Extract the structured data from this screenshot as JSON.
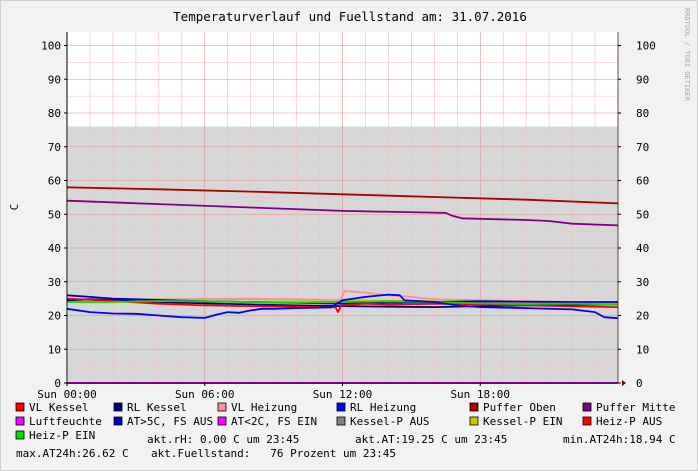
{
  "chart_data": {
    "type": "line",
    "title": "Temperaturverlauf und Fuellstand am: 31.07.2016",
    "ylabel": "C",
    "watermark": "RRDTOOL / TOBI OETIKER",
    "ylim": [
      0,
      104
    ],
    "y_ticks": [
      0,
      10,
      20,
      30,
      40,
      50,
      60,
      70,
      80,
      90,
      100
    ],
    "x_range_hours": [
      0,
      24
    ],
    "x_ticks": [
      {
        "hour": 0,
        "label": "Sun 00:00"
      },
      {
        "hour": 6,
        "label": "Sun 06:00"
      },
      {
        "hour": 12,
        "label": "Sun 12:00"
      },
      {
        "hour": 18,
        "label": "Sun 18:00"
      }
    ],
    "grid": true,
    "area": {
      "name": "Fuellstand",
      "value": 76,
      "color": "#d7d7d7"
    },
    "series": [
      {
        "name": "VL Kessel",
        "color": "#ff0000",
        "points": [
          [
            0,
            25
          ],
          [
            2,
            24.3
          ],
          [
            4,
            23.5
          ],
          [
            6,
            23
          ],
          [
            8,
            22.8
          ],
          [
            10,
            22.6
          ],
          [
            11.7,
            22.4
          ],
          [
            11.8,
            21
          ],
          [
            11.95,
            23
          ],
          [
            13,
            23.5
          ],
          [
            14,
            23.2
          ],
          [
            16,
            23.5
          ],
          [
            18,
            23.3
          ],
          [
            20,
            23
          ],
          [
            22,
            22.7
          ],
          [
            24,
            22.5
          ]
        ]
      },
      {
        "name": "RL Kessel",
        "color": "#000080",
        "points": [
          [
            0,
            24.5
          ],
          [
            1,
            24.8
          ],
          [
            2,
            24.5
          ],
          [
            4,
            24
          ],
          [
            6,
            23.6
          ],
          [
            8,
            23.3
          ],
          [
            10,
            23
          ],
          [
            12,
            22.8
          ],
          [
            14,
            22.6
          ],
          [
            16,
            22.5
          ],
          [
            18,
            22.8
          ],
          [
            20,
            23
          ],
          [
            22,
            23.2
          ],
          [
            24,
            23.3
          ]
        ]
      },
      {
        "name": "VL Heizung",
        "color": "#ff8ca0",
        "points": [
          [
            0,
            24.8
          ],
          [
            4,
            24.8
          ],
          [
            8,
            25
          ],
          [
            10,
            24.8
          ],
          [
            11.9,
            24.5
          ],
          [
            12.1,
            27.3
          ],
          [
            13,
            26.8
          ],
          [
            14,
            26
          ],
          [
            15,
            25.5
          ],
          [
            16,
            24.8
          ],
          [
            18,
            24.5
          ],
          [
            20,
            24.2
          ],
          [
            22,
            24
          ],
          [
            24,
            23.8
          ]
        ]
      },
      {
        "name": "RL Heizung",
        "color": "#0000ff",
        "points": [
          [
            0,
            22
          ],
          [
            1,
            21
          ],
          [
            2,
            20.6
          ],
          [
            3,
            20.5
          ],
          [
            4,
            20
          ],
          [
            5,
            19.5
          ],
          [
            6,
            19.3
          ],
          [
            6.5,
            20.2
          ],
          [
            7,
            21
          ],
          [
            7.5,
            20.8
          ],
          [
            8,
            21.5
          ],
          [
            8.5,
            22
          ],
          [
            9,
            22
          ],
          [
            10,
            22.2
          ],
          [
            11.5,
            22.4
          ],
          [
            12,
            24.5
          ],
          [
            13,
            25.5
          ],
          [
            14,
            26.2
          ],
          [
            14.5,
            26
          ],
          [
            14.7,
            24.5
          ],
          [
            16,
            24
          ],
          [
            17,
            23
          ],
          [
            18,
            22.5
          ],
          [
            20,
            22.2
          ],
          [
            22,
            21.8
          ],
          [
            23,
            21
          ],
          [
            23.4,
            19.5
          ],
          [
            24,
            19.2
          ]
        ]
      },
      {
        "name": "Puffer Oben",
        "color": "#aa0000",
        "points": [
          [
            0,
            58
          ],
          [
            4,
            57.4
          ],
          [
            8,
            56.7
          ],
          [
            12,
            55.9
          ],
          [
            16,
            55.1
          ],
          [
            20,
            54.3
          ],
          [
            24,
            53.2
          ]
        ]
      },
      {
        "name": "Puffer Mitte",
        "color": "#800080",
        "points": [
          [
            0,
            54
          ],
          [
            4,
            53
          ],
          [
            8,
            52
          ],
          [
            12,
            51
          ],
          [
            16.5,
            50.4
          ],
          [
            16.8,
            49.5
          ],
          [
            17.2,
            48.8
          ],
          [
            20,
            48.3
          ],
          [
            21,
            48
          ],
          [
            22,
            47.2
          ],
          [
            24,
            46.7
          ]
        ]
      },
      {
        "name": "Luftfeuchte",
        "color": "#ff00ff",
        "points": [
          [
            0,
            0
          ],
          [
            24,
            0
          ]
        ]
      },
      {
        "name": "AT>5C, FS AUS",
        "color": "#0000cc",
        "points": [
          [
            0,
            26
          ],
          [
            1,
            25.5
          ],
          [
            2,
            25
          ],
          [
            4,
            24.6
          ],
          [
            6,
            24.2
          ],
          [
            8,
            24
          ],
          [
            10,
            23.8
          ],
          [
            12,
            23.5
          ],
          [
            14,
            23.8
          ],
          [
            16,
            24
          ],
          [
            18,
            24.2
          ],
          [
            20,
            24.1
          ],
          [
            22,
            24
          ],
          [
            24,
            24
          ]
        ]
      },
      {
        "name": "AT<2C, FS EIN",
        "color": "#ff00ff",
        "points": []
      },
      {
        "name": "Kessel-P AUS",
        "color": "#808080",
        "points": []
      },
      {
        "name": "Kessel-P EIN",
        "color": "#c8c800",
        "points": [
          [
            0,
            24.6
          ],
          [
            4,
            24.8
          ],
          [
            8,
            24.8
          ],
          [
            12,
            24.5
          ],
          [
            16,
            24.3
          ],
          [
            20,
            24
          ],
          [
            24,
            23.8
          ]
        ]
      },
      {
        "name": "Heiz-P AUS",
        "color": "#ff0000",
        "points": []
      },
      {
        "name": "Heiz-P EIN",
        "color": "#00e000",
        "points": [
          [
            0,
            24
          ],
          [
            2,
            24
          ],
          [
            4,
            24.3
          ],
          [
            6,
            24.2
          ],
          [
            8,
            24
          ],
          [
            10,
            23.9
          ],
          [
            12,
            24
          ],
          [
            14,
            24.2
          ],
          [
            16,
            24
          ],
          [
            18,
            23.6
          ],
          [
            20,
            23.4
          ],
          [
            22,
            23.5
          ],
          [
            24,
            23.3
          ]
        ]
      }
    ],
    "stats": {
      "rh": "akt.rH: 0.00 C um 23:45",
      "at": "akt.AT:19.25 C um 23:45",
      "min": "min.AT24h:18.94 C",
      "max": "max.AT24h:26.62 C",
      "fuellstand": "akt.Fuellstand:   76 Prozent um 23:45"
    }
  }
}
